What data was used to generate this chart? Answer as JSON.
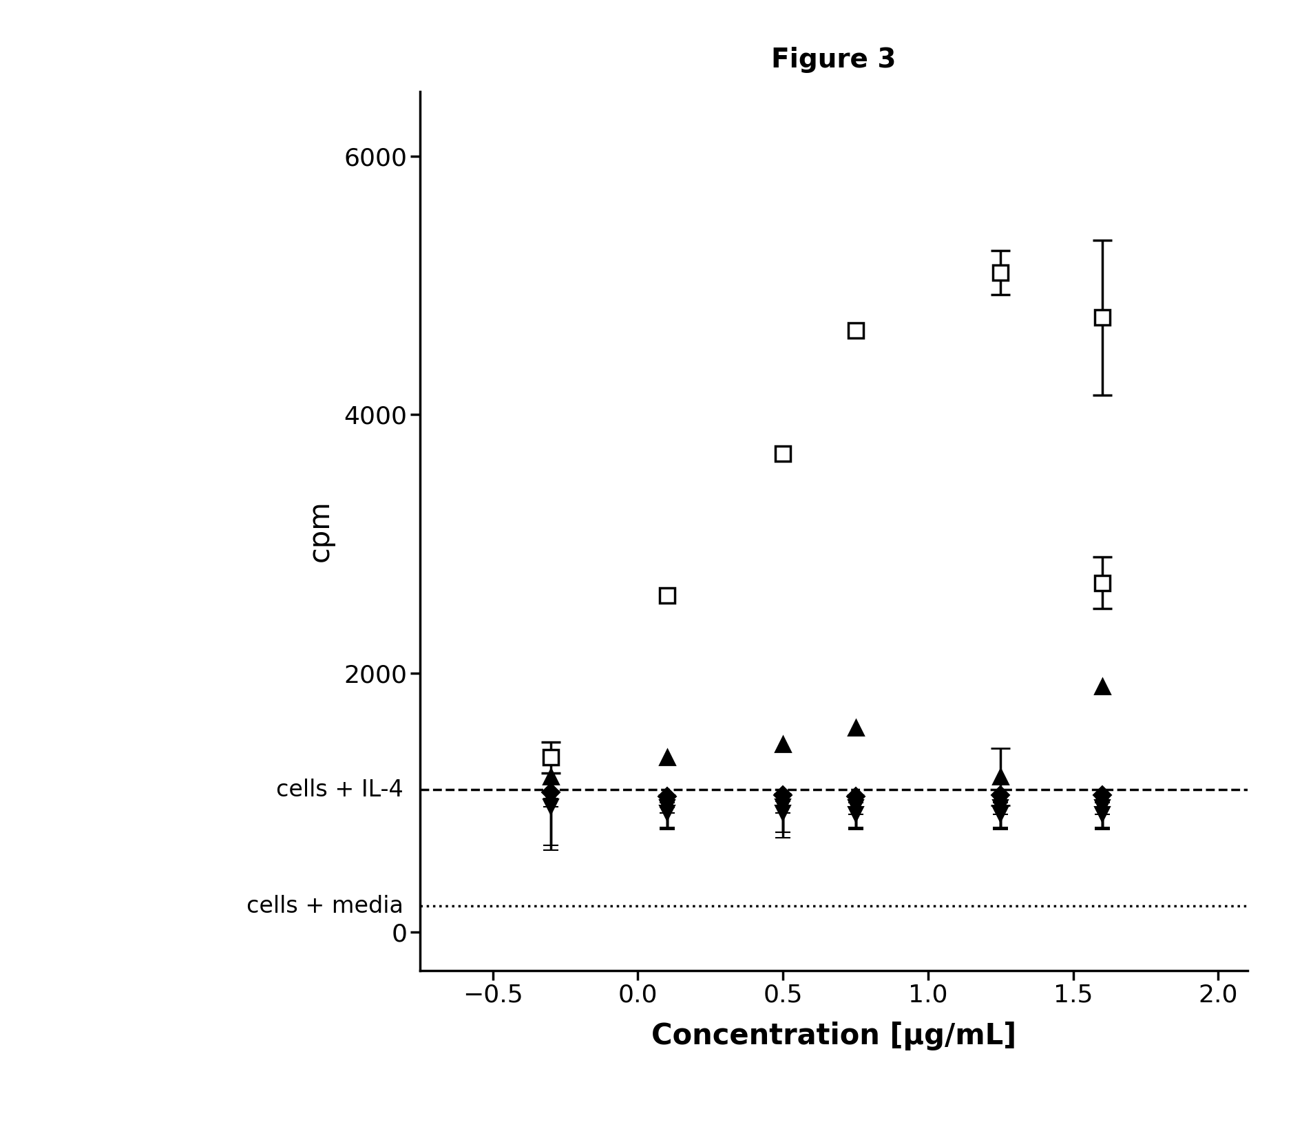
{
  "title": "Figure 3",
  "xlabel": "Concentration [μg/mL]",
  "ylabel": "cpm",
  "xlim": [
    -0.75,
    2.1
  ],
  "ylim": [
    -300,
    6500
  ],
  "cells_il4_level": 1100,
  "cells_media_level": 200,
  "background_color": "#ffffff",
  "sq_series1": {
    "x": [
      -0.3,
      0.1,
      0.5,
      0.75,
      1.25,
      1.6
    ],
    "y": [
      1350,
      2600,
      3700,
      4650,
      5100,
      4750
    ],
    "yerr_sym": [
      120,
      0,
      0,
      0,
      170,
      600
    ]
  },
  "sq_series2_x": 1.6,
  "sq_series2_y": 2700,
  "sq_series2_yerr": 200,
  "tri_up_x": [
    -0.3,
    0.1,
    0.5,
    0.75,
    1.25,
    1.6
  ],
  "tri_up_y": [
    1200,
    1350,
    1450,
    1580,
    1200,
    1900
  ],
  "tri_up_yerr": [
    0,
    0,
    0,
    0,
    220,
    0
  ],
  "diamonds_x": [
    -0.3,
    0.1,
    0.5,
    0.75,
    1.25,
    1.6
  ],
  "diamonds_y": [
    1080,
    1050,
    1060,
    1050,
    1060,
    1060
  ],
  "inv_tri_sets": [
    {
      "x": [
        -0.3,
        0.1,
        0.5,
        0.75,
        1.25,
        1.6
      ],
      "y": [
        1030,
        1000,
        1010,
        1000,
        1000,
        1000
      ],
      "yerr_down": [
        400,
        200,
        280,
        200,
        200,
        200
      ]
    },
    {
      "x": [
        -0.3,
        0.1,
        0.5,
        0.75,
        1.25,
        1.6
      ],
      "y": [
        970,
        960,
        970,
        960,
        960,
        960
      ],
      "yerr_down": [
        300,
        150,
        200,
        150,
        150,
        150
      ]
    },
    {
      "x": [
        0.1,
        0.5,
        0.75,
        1.25,
        1.6
      ],
      "y": [
        920,
        920,
        910,
        910,
        910
      ],
      "yerr_down": [
        130,
        150,
        120,
        120,
        120
      ]
    }
  ],
  "xticks": [
    -0.5,
    0.0,
    0.5,
    1.0,
    1.5,
    2.0
  ],
  "yticks": [
    0,
    2000,
    4000,
    6000
  ],
  "tick_fontsize": 26,
  "label_fontsize": 30,
  "title_fontsize": 28,
  "annotation_fontsize": 24,
  "marker_size": 16,
  "lw": 2.5
}
